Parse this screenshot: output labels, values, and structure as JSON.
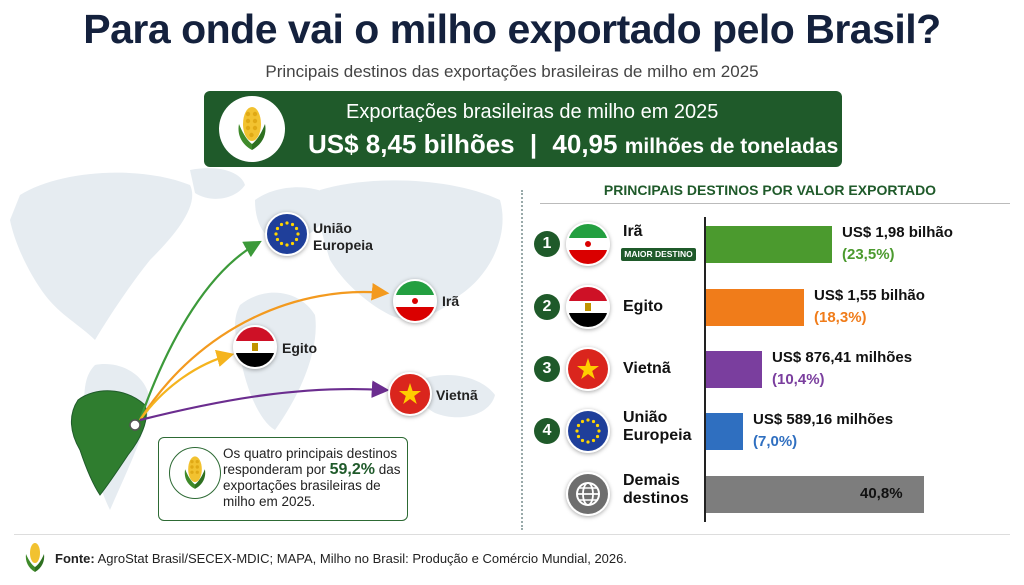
{
  "title": "Para onde vai o milho exportado pelo Brasil?",
  "subtitle": "Principais destinos das exportações brasileiras de milho em 2025",
  "banner": {
    "line1": "Exportações brasileiras de milho em 2025",
    "value": "US$ 8,45 bilhões",
    "separator": "|",
    "tons_value": "40,95",
    "tons_unit": "milhões de toneladas",
    "color": "#1f5a2a"
  },
  "map": {
    "labels": {
      "eu": [
        "União",
        "Europeia"
      ],
      "iran": "Irã",
      "egypt": "Egito",
      "vietnam": "Vietnã"
    },
    "arrow_colors": {
      "eu": "#3c9a3a",
      "iran": "#f39a1f",
      "egypt": "#f5b41e",
      "vietnam": "#6b2d8f"
    }
  },
  "note": {
    "part1": "Os quatro principais destinos",
    "part2": "responderam por",
    "highlight": "59,2%",
    "part3": "das",
    "part4": "exportações brasileiras de",
    "part5": "milho em 2025."
  },
  "panel_title": "PRINCIPAIS DESTINOS POR VALOR EXPORTADO",
  "top_tag": "MAIOR DESTINO",
  "chart_data": {
    "type": "bar",
    "title": "PRINCIPAIS DESTINOS POR VALOR EXPORTADO",
    "orientation": "horizontal",
    "categories": [
      "Irã",
      "Egito",
      "Vietnã",
      "União Europeia",
      "Demais destinos"
    ],
    "values": [
      23.5,
      18.3,
      10.4,
      7.0,
      40.8
    ],
    "value_labels": [
      "US$ 1,98 bilhão",
      "US$ 1,55 bilhão",
      "US$ 876,41 milhões",
      "US$ 589,16 milhões",
      "40,8%"
    ],
    "percent_labels": [
      "(23,5%)",
      "(18,3%)",
      "(10,4%)",
      "(7,0%)",
      ""
    ],
    "ranks": [
      "1",
      "2",
      "3",
      "4",
      ""
    ],
    "colors": [
      "#4b9a2e",
      "#f07c1a",
      "#7a3e9e",
      "#2f6fc0",
      "#7d7d7d"
    ],
    "grid": false
  },
  "footer": {
    "label": "Fonte:",
    "text": "AgroStat Brasil/SECEX-MDIC; MAPA, Milho no Brasil: Produção e Comércio Mundial, 2026."
  }
}
